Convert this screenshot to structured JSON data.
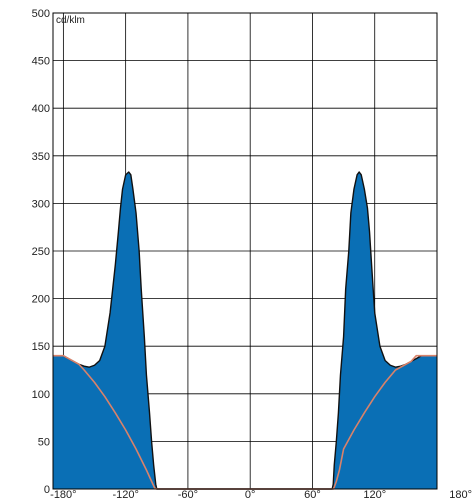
{
  "chart_data": {
    "type": "area",
    "unit_label": "cd/klm",
    "xlim": [
      -190,
      180
    ],
    "ylim": [
      0,
      500
    ],
    "x_ticks": [
      -180,
      -120,
      -60,
      0,
      60,
      120,
      180
    ],
    "x_tick_labels": [
      "-180°",
      "-120°",
      "-60°",
      "0°",
      "60°",
      "120°",
      "180°"
    ],
    "y_ticks": [
      0,
      50,
      100,
      150,
      200,
      250,
      300,
      350,
      400,
      450,
      500
    ],
    "y_tick_labels": [
      "0",
      "50",
      "100",
      "150",
      "200",
      "250",
      "300",
      "350",
      "400",
      "450",
      "500"
    ],
    "grid": true,
    "colors": {
      "fill": "#0a6fb5",
      "outline": "#111111",
      "secondary_curve": "#d9826a",
      "grid": "#000000"
    },
    "series": [
      {
        "role": "filled-curve",
        "x": [
          -190,
          -180,
          -175,
          -170,
          -165,
          -160,
          -155,
          -150,
          -145,
          -140,
          -135,
          -130,
          -127,
          -125,
          -123,
          -120,
          -117,
          -115,
          -113,
          -110,
          -107,
          -105,
          -102,
          -100,
          -97,
          -95,
          -93,
          -91,
          -90,
          -80,
          -70,
          -60,
          -50,
          -40,
          -30,
          -20,
          -10,
          0,
          10,
          20,
          30,
          40,
          50,
          60,
          70,
          79,
          80,
          81,
          83,
          85,
          87,
          90,
          92,
          95,
          97,
          100,
          103,
          105,
          107,
          110,
          113,
          115,
          117,
          120,
          125,
          130,
          135,
          140,
          145,
          150,
          155,
          160,
          165,
          170,
          175,
          180
        ],
        "y": [
          140,
          140,
          137,
          134,
          131,
          129,
          128,
          130,
          135,
          150,
          185,
          235,
          270,
          295,
          315,
          330,
          333,
          330,
          315,
          290,
          250,
          210,
          160,
          120,
          80,
          50,
          25,
          5,
          0,
          0,
          0,
          0,
          0,
          0,
          0,
          0,
          0,
          0,
          0,
          0,
          0,
          0,
          0,
          0,
          0,
          0,
          5,
          25,
          50,
          80,
          120,
          160,
          210,
          250,
          290,
          315,
          330,
          333,
          330,
          315,
          295,
          270,
          235,
          185,
          150,
          135,
          130,
          128,
          129,
          131,
          134,
          137,
          140,
          140,
          140,
          140
        ]
      },
      {
        "role": "secondary-curve",
        "x": [
          -190,
          -180,
          -170,
          -165,
          -160,
          -150,
          -140,
          -130,
          -120,
          -110,
          -100,
          -95,
          -92,
          -90,
          -80,
          -60,
          -40,
          -20,
          0,
          20,
          40,
          60,
          80,
          81,
          83,
          86,
          90,
          100,
          110,
          120,
          130,
          140,
          150,
          155,
          160,
          170,
          180
        ],
        "y": [
          140,
          140,
          134,
          131,
          125,
          112,
          97,
          80,
          62,
          42,
          20,
          8,
          1,
          0,
          0,
          0,
          0,
          0,
          0,
          0,
          0,
          0,
          0,
          2,
          8,
          20,
          42,
          62,
          80,
          97,
          112,
          125,
          131,
          134,
          140,
          140,
          140
        ]
      }
    ]
  }
}
